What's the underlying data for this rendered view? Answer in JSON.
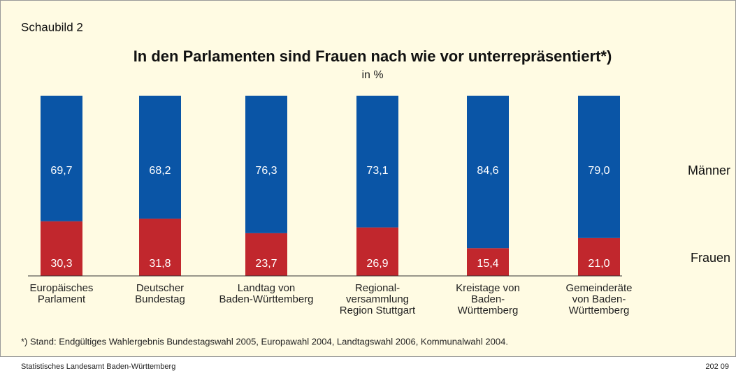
{
  "chart_data": {
    "type": "stacked_bar",
    "chart_label": "Schaubild 2",
    "title": "In den Parlamenten sind Frauen nach wie vor unterrepräsentiert*)",
    "subtitle": "in %",
    "categories": [
      "Europäisches\nParlament",
      "Deutscher\nBundestag",
      "Landtag von\nBaden-Württemberg",
      "Regional-\nversammlung\nRegion Stuttgart",
      "Kreistage von\nBaden-\nWürttemberg",
      "Gemeinderäte\nvon Baden-\nWürttemberg"
    ],
    "series": [
      {
        "name": "Frauen",
        "color": "#c1272d",
        "values": [
          30.3,
          31.8,
          23.7,
          26.9,
          15.4,
          21.0
        ],
        "value_labels": [
          "30,3",
          "31,8",
          "23,7",
          "26,9",
          "15,4",
          "21,0"
        ]
      },
      {
        "name": "Männer",
        "color": "#0a55a6",
        "values": [
          69.7,
          68.2,
          76.3,
          73.1,
          84.6,
          79.0
        ],
        "value_labels": [
          "69,7",
          "68,2",
          "76,3",
          "73,1",
          "84,6",
          "79,0"
        ]
      }
    ],
    "ylim": [
      0,
      100
    ],
    "footnote": "*) Stand: Endgültiges Wahlergebnis Bundestagswahl 2005, Europawahl 2004, Landtagswahl 2006, Kommunalwahl 2004.",
    "source": "Statistisches Landesamt Baden-Württemberg",
    "code": "202 09"
  }
}
